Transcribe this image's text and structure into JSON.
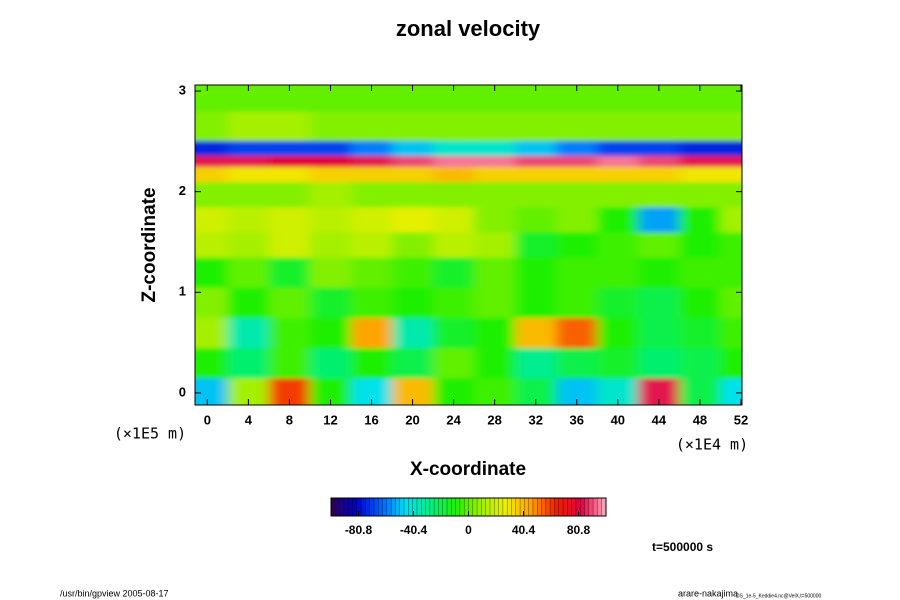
{
  "chart_data": {
    "type": "heatmap",
    "title": "zonal velocity",
    "x_label": "X-coordinate",
    "y_label": "Z-coordinate",
    "x_unit": "(×1E4 m)",
    "y_unit": "(×1E5 m)",
    "time_label": "t=500000 s",
    "footer_left": "/usr/bin/gpview 2005-08-17",
    "footer_right": "arare-nakajima",
    "footer_right_small": "DS_1e-5_Keddie4.nc@VelX,t=500000",
    "x": [
      0,
      4,
      8,
      12,
      16,
      20,
      24,
      28,
      32,
      36,
      40,
      44,
      48,
      52
    ],
    "y": [
      0,
      0.3,
      0.6,
      0.9,
      1.2,
      1.5,
      1.7,
      2.0,
      2.2,
      2.3,
      2.42,
      2.6,
      3.0
    ],
    "z": [
      [
        -50,
        10,
        60,
        -10,
        -45,
        40,
        -10,
        -5,
        -20,
        -50,
        -40,
        85,
        -20,
        -45
      ],
      [
        -10,
        -25,
        -5,
        -25,
        -10,
        -20,
        0,
        -10,
        -30,
        -20,
        -15,
        -25,
        -20,
        -10
      ],
      [
        10,
        -35,
        -5,
        -10,
        45,
        -35,
        -15,
        -10,
        40,
        55,
        -10,
        -20,
        -15,
        -5
      ],
      [
        5,
        -10,
        0,
        -15,
        -5,
        -10,
        -5,
        0,
        -10,
        -5,
        -15,
        -20,
        -10,
        0
      ],
      [
        -10,
        0,
        -15,
        5,
        0,
        -5,
        -15,
        0,
        -10,
        -5,
        -5,
        -10,
        -5,
        -5
      ],
      [
        15,
        10,
        20,
        10,
        15,
        5,
        15,
        10,
        -15,
        -10,
        -5,
        0,
        -10,
        -5
      ],
      [
        20,
        15,
        20,
        15,
        20,
        25,
        20,
        5,
        0,
        5,
        -10,
        -55,
        -10,
        10
      ],
      [
        5,
        5,
        5,
        10,
        5,
        5,
        5,
        5,
        5,
        5,
        5,
        5,
        5,
        5
      ],
      [
        35,
        30,
        30,
        35,
        35,
        35,
        40,
        35,
        35,
        35,
        35,
        35,
        30,
        30
      ],
      [
        85,
        85,
        80,
        80,
        85,
        90,
        95,
        95,
        90,
        90,
        95,
        90,
        85,
        85
      ],
      [
        -75,
        -70,
        -70,
        -70,
        -60,
        -50,
        -40,
        -40,
        -50,
        -60,
        -70,
        -70,
        -75,
        -75
      ],
      [
        5,
        10,
        10,
        5,
        5,
        5,
        5,
        5,
        5,
        5,
        5,
        5,
        5,
        5
      ],
      [
        0,
        0,
        0,
        0,
        0,
        0,
        0,
        0,
        0,
        0,
        0,
        0,
        0,
        0
      ]
    ],
    "xlim": [
      -1.2,
      52.1
    ],
    "ylim": [
      -0.12,
      3.06
    ],
    "xticks": [
      0,
      4,
      8,
      12,
      16,
      20,
      24,
      28,
      32,
      36,
      40,
      44,
      48,
      52
    ],
    "yticks": [
      0,
      1,
      2,
      3
    ],
    "clim": [
      -101,
      101
    ],
    "cticks": [
      -80.8,
      -40.4,
      0,
      40.4,
      80.8
    ],
    "colormap": [
      "#30004a",
      "#0000c8",
      "#0060ff",
      "#00e0f0",
      "#00f080",
      "#20f000",
      "#a0f000",
      "#f0f000",
      "#ffa000",
      "#f02000",
      "#e00040",
      "#ffb0c0"
    ]
  }
}
